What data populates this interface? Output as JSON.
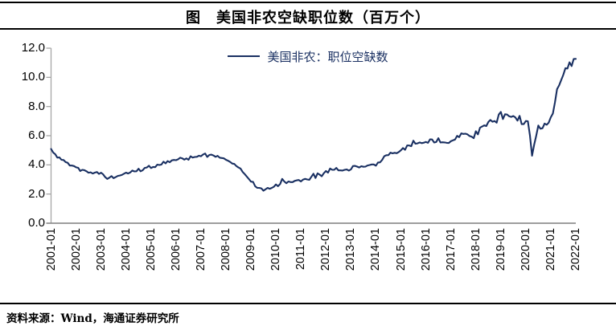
{
  "header": {
    "title": "图　美国非农空缺职位数（百万个）"
  },
  "legend": {
    "label": "美国非农：职位空缺数"
  },
  "footer": {
    "source": "资料来源：Wind，海通证券研究所"
  },
  "colors": {
    "series_line": "#1A3062",
    "legend_text": "#1A3062",
    "y_axis": "#A6A6A6",
    "x_axis": "#7F7F7F",
    "rules": "#000000",
    "text": "#000000"
  },
  "chart_data": {
    "type": "line",
    "title": "图　美国非农空缺职位数（百万个）",
    "xlabel": "",
    "ylabel": "",
    "unit": "百万个",
    "frequency": "monthly",
    "x_start": "2001-01",
    "x_end": "2022-01",
    "ylim": [
      0,
      12
    ],
    "grid": false,
    "legend_position": "top-center",
    "y_ticks": [
      {
        "value": 0,
        "label": "0.0"
      },
      {
        "value": 2,
        "label": "2.0"
      },
      {
        "value": 4,
        "label": "4.0"
      },
      {
        "value": 6,
        "label": "6.0"
      },
      {
        "value": 8,
        "label": "8.0"
      },
      {
        "value": 10,
        "label": "10.0"
      },
      {
        "value": 12,
        "label": "12.0"
      }
    ],
    "x_tick_labels": [
      "2001-01",
      "2002-01",
      "2003-01",
      "2004-01",
      "2005-01",
      "2006-01",
      "2007-01",
      "2008-01",
      "2009-01",
      "2010-01",
      "2011-01",
      "2012-01",
      "2013-01",
      "2014-01",
      "2015-01",
      "2016-01",
      "2017-01",
      "2018-01",
      "2019-01",
      "2020-01",
      "2021-01",
      "2022-01"
    ],
    "series": [
      {
        "name": "美国非农：职位空缺数",
        "color": "#1A3062",
        "monthly_values": [
          5.09,
          4.85,
          4.73,
          4.5,
          4.51,
          4.35,
          4.33,
          4.19,
          4.14,
          3.95,
          3.95,
          3.92,
          3.83,
          3.8,
          3.58,
          3.66,
          3.64,
          3.56,
          3.46,
          3.49,
          3.41,
          3.47,
          3.51,
          3.38,
          3.46,
          3.35,
          3.16,
          3.04,
          3.12,
          3.23,
          3.09,
          3.16,
          3.24,
          3.27,
          3.31,
          3.39,
          3.47,
          3.41,
          3.48,
          3.61,
          3.55,
          3.56,
          3.74,
          3.56,
          3.63,
          3.79,
          3.82,
          3.94,
          3.78,
          3.86,
          3.84,
          4.02,
          3.99,
          4.02,
          4.22,
          4.1,
          4.26,
          4.18,
          4.31,
          4.34,
          4.32,
          4.38,
          4.49,
          4.45,
          4.36,
          4.44,
          4.35,
          4.59,
          4.5,
          4.54,
          4.55,
          4.63,
          4.59,
          4.71,
          4.78,
          4.54,
          4.68,
          4.7,
          4.64,
          4.55,
          4.62,
          4.49,
          4.47,
          4.45,
          4.35,
          4.28,
          4.2,
          4.09,
          4.06,
          3.92,
          3.82,
          3.75,
          3.52,
          3.37,
          3.2,
          3.03,
          2.85,
          2.83,
          2.54,
          2.43,
          2.42,
          2.39,
          2.23,
          2.33,
          2.42,
          2.36,
          2.42,
          2.5,
          2.66,
          2.54,
          2.68,
          3.04,
          2.86,
          2.74,
          2.86,
          2.82,
          2.82,
          2.9,
          2.94,
          2.96,
          2.86,
          2.99,
          3.04,
          3.0,
          2.97,
          3.18,
          3.39,
          3.1,
          3.42,
          3.33,
          3.22,
          3.43,
          3.58,
          3.47,
          3.75,
          3.66,
          3.66,
          3.79,
          3.62,
          3.62,
          3.61,
          3.66,
          3.68,
          3.61,
          3.69,
          3.92,
          3.93,
          3.88,
          3.82,
          3.91,
          3.87,
          3.88,
          3.96,
          3.99,
          4.03,
          4.03,
          3.94,
          4.16,
          4.17,
          4.34,
          4.59,
          4.66,
          4.67,
          4.84,
          4.79,
          4.83,
          4.8,
          4.88,
          5.0,
          5.15,
          5.03,
          5.33,
          5.33,
          5.28,
          5.66,
          5.45,
          5.47,
          5.54,
          5.49,
          5.52,
          5.57,
          5.51,
          5.75,
          5.74,
          5.53,
          5.57,
          5.83,
          5.54,
          5.55,
          5.54,
          5.51,
          5.5,
          5.62,
          5.68,
          5.73,
          5.99,
          5.9,
          6.16,
          6.12,
          6.14,
          6.09,
          5.98,
          5.93,
          5.83,
          6.31,
          6.09,
          6.55,
          6.63,
          6.71,
          6.66,
          6.94,
          7.08,
          6.96,
          7.01,
          6.89,
          7.45,
          7.63,
          7.14,
          7.47,
          7.45,
          7.33,
          7.29,
          7.35,
          7.25,
          7.03,
          7.36,
          6.79,
          6.79,
          7.01,
          6.99,
          6.01,
          4.63,
          5.37,
          6.0,
          6.7,
          6.48,
          6.51,
          6.83,
          6.75,
          6.89,
          7.26,
          7.52,
          8.29,
          9.19,
          9.45,
          9.82,
          10.18,
          10.63,
          10.6,
          11.03,
          10.77,
          11.26,
          11.27
        ]
      }
    ]
  }
}
